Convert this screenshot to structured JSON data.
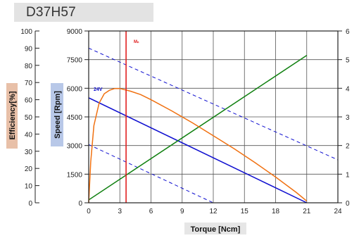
{
  "header": {
    "title": "D37H57"
  },
  "chart_data": {
    "type": "line",
    "xlabel": "Torque [Ncm]",
    "ylabel_speed": "Speed [Rpm]",
    "ylabel_efficiency": "Efficiency[%]",
    "xlim": [
      0,
      24
    ],
    "x_ticks": [
      "0",
      "3",
      "6",
      "9",
      "12",
      "15",
      "18",
      "21",
      "24"
    ],
    "speed_ylim": [
      0,
      9000
    ],
    "speed_ticks": [
      "0",
      "1500",
      "3000",
      "4500",
      "6000",
      "7500",
      "9000"
    ],
    "efficiency_ylim": [
      0,
      100
    ],
    "efficiency_ticks": [
      "0",
      "10",
      "20",
      "30",
      "40",
      "50",
      "60",
      "70",
      "80",
      "90",
      "100"
    ],
    "right_ylim": [
      0,
      6
    ],
    "right_ticks": [
      "0",
      "1",
      "2",
      "3",
      "4",
      "5",
      "6"
    ],
    "annotations": {
      "voltage": "24V",
      "rated_torque": "Mₙ"
    },
    "grid": true,
    "colors": {
      "speed": "#1010d0",
      "current": "#108010",
      "efficiency": "#f07010",
      "rated_torque": "#e02020",
      "efficiency_label_bg": "#e8c0a8",
      "speed_label_bg": "#b8c8e8"
    },
    "series": [
      {
        "key": "speed",
        "axis": "speed",
        "style": "solid",
        "x": [
          0,
          21
        ],
        "y": [
          5500,
          0
        ]
      },
      {
        "key": "speed-upper",
        "axis": "speed",
        "style": "dashed",
        "x": [
          0,
          24
        ],
        "y": [
          8100,
          2250
        ]
      },
      {
        "key": "speed-lower",
        "axis": "speed",
        "style": "dashed",
        "x": [
          0,
          12
        ],
        "y": [
          3050,
          0
        ]
      },
      {
        "key": "current",
        "axis": "right",
        "style": "solid",
        "x": [
          0,
          21
        ],
        "y": [
          0.1,
          5.15
        ]
      },
      {
        "key": "efficiency",
        "axis": "efficiency",
        "style": "solid",
        "x": [
          0,
          0.2,
          0.5,
          1.0,
          1.5,
          2.0,
          2.5,
          3.0,
          4.0,
          5.0,
          6.0,
          8.0,
          10.0,
          12.0,
          14.0,
          16.0,
          18.0,
          20.0,
          21.0
        ],
        "y": [
          0,
          24,
          45,
          58,
          63.5,
          65.5,
          66.5,
          66.5,
          65,
          63,
          60,
          53.5,
          46.5,
          39,
          31.5,
          23.5,
          15,
          6,
          1
        ]
      },
      {
        "key": "rated-torque",
        "axis": "speed",
        "style": "solid",
        "x": [
          3.6,
          3.6
        ],
        "y": [
          0,
          9000
        ]
      }
    ]
  }
}
